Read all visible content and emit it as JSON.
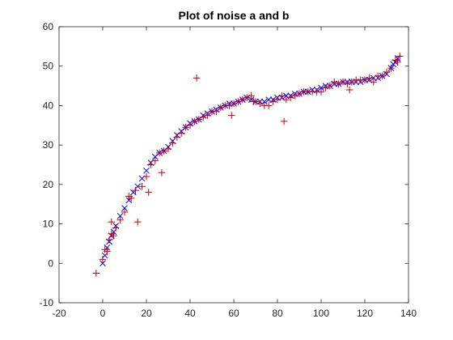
{
  "chart_data": {
    "type": "scatter",
    "title": "Plot of noise a and b",
    "xlim": [
      -20,
      140
    ],
    "ylim": [
      -10,
      60
    ],
    "xticks": [
      -20,
      0,
      20,
      40,
      60,
      80,
      100,
      120,
      140
    ],
    "yticks": [
      -10,
      0,
      10,
      20,
      30,
      40,
      50,
      60
    ],
    "grid": false,
    "colors": {
      "series_a": "#0000ff",
      "series_b": "#cc0000"
    },
    "series": [
      {
        "marker": "x",
        "color": "#0000ff",
        "x": [
          0,
          1,
          2,
          3,
          4,
          5,
          6,
          8,
          10,
          12,
          14,
          16,
          18,
          20,
          22,
          24,
          26,
          28,
          30,
          32,
          34,
          36,
          38,
          40,
          42,
          44,
          46,
          48,
          50,
          52,
          54,
          56,
          58,
          60,
          62,
          64,
          66,
          68,
          70,
          72,
          74,
          76,
          78,
          80,
          82,
          84,
          86,
          88,
          90,
          92,
          94,
          96,
          98,
          100,
          102,
          104,
          106,
          108,
          110,
          112,
          114,
          116,
          118,
          120,
          122,
          124,
          126,
          128,
          130,
          132,
          133,
          134,
          135
        ],
        "y": [
          0,
          2,
          4,
          5.5,
          7,
          8,
          9.5,
          12,
          14,
          16,
          18,
          19.5,
          21.5,
          23.5,
          25.5,
          27,
          28,
          28.5,
          29.5,
          31,
          32.5,
          33.5,
          34.5,
          35.5,
          36,
          36.5,
          37.5,
          38,
          38.5,
          39,
          39.5,
          40,
          40.5,
          40.5,
          41,
          41.5,
          42,
          41.5,
          41,
          41,
          41,
          41.5,
          41.5,
          42,
          42,
          42.5,
          42.5,
          43,
          43,
          43.5,
          43.5,
          44,
          44,
          44.5,
          45,
          45,
          45.5,
          45.5,
          46,
          46,
          46,
          46,
          46,
          46.5,
          46.5,
          47,
          47,
          47.5,
          48,
          49.5,
          50.5,
          51,
          52
        ]
      },
      {
        "marker": "+",
        "color": "#cc0000",
        "x": [
          -3,
          0,
          1,
          2,
          3,
          4,
          4,
          5,
          6,
          8,
          10,
          12,
          13,
          15,
          16,
          18,
          20,
          21,
          22,
          24,
          26,
          27,
          28,
          30,
          32,
          34,
          36,
          38,
          40,
          42,
          43,
          44,
          46,
          48,
          50,
          52,
          54,
          56,
          58,
          59,
          60,
          62,
          64,
          66,
          68,
          69,
          70,
          72,
          74,
          76,
          78,
          80,
          82,
          83,
          84,
          86,
          88,
          90,
          92,
          94,
          96,
          98,
          100,
          102,
          104,
          106,
          108,
          110,
          112,
          113,
          114,
          116,
          118,
          120,
          122,
          124,
          126,
          128,
          130,
          132,
          134,
          135,
          136
        ],
        "y": [
          -2.5,
          1,
          3.5,
          3,
          6,
          7.5,
          10.5,
          7,
          9,
          11,
          13,
          17,
          16.5,
          18.5,
          10.5,
          19.5,
          22,
          18,
          25,
          26,
          28,
          23,
          28.5,
          29,
          30.5,
          32,
          33,
          34.5,
          35,
          36,
          47,
          36.5,
          37,
          37.5,
          38.5,
          38.5,
          39.5,
          40,
          40,
          37.5,
          40.5,
          41,
          41.5,
          42,
          42.5,
          41,
          41,
          40.5,
          40,
          40,
          41,
          41.5,
          42.5,
          36,
          41.5,
          42,
          42.5,
          43,
          43.5,
          43.5,
          43.5,
          43.5,
          43.5,
          44.5,
          45,
          46,
          45.5,
          46,
          45.5,
          44,
          46,
          46.5,
          46.5,
          46.5,
          47,
          46,
          47.5,
          47.5,
          48.5,
          49.5,
          51.5,
          51,
          52.5
        ]
      }
    ]
  }
}
